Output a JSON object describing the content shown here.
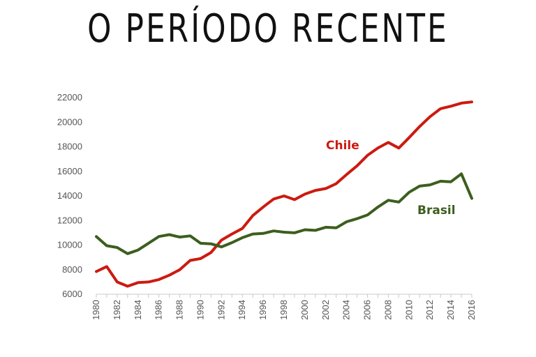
{
  "title": "O PERÍODO RECENTE",
  "chart_data": {
    "type": "line",
    "title": "O PERÍODO RECENTE",
    "xlabel": "",
    "ylabel": "",
    "xlim": [
      1980,
      2016
    ],
    "ylim": [
      6000,
      22000
    ],
    "yticks": [
      6000,
      8000,
      10000,
      12000,
      14000,
      16000,
      18000,
      20000,
      22000
    ],
    "xticks": [
      1980,
      1982,
      1984,
      1986,
      1988,
      1990,
      1992,
      1994,
      1996,
      1998,
      2000,
      2002,
      2004,
      2006,
      2008,
      2010,
      2012,
      2014,
      2016
    ],
    "grid": false,
    "legend": "none (direct labels)",
    "x": [
      1980,
      1981,
      1982,
      1983,
      1984,
      1985,
      1986,
      1987,
      1988,
      1989,
      1990,
      1991,
      1992,
      1993,
      1994,
      1995,
      1996,
      1997,
      1998,
      1999,
      2000,
      2001,
      2002,
      2003,
      2004,
      2005,
      2006,
      2007,
      2008,
      2009,
      2010,
      2011,
      2012,
      2013,
      2014,
      2015,
      2016
    ],
    "series": [
      {
        "name": "Chile",
        "color": "#cc1a10",
        "values": [
          7850,
          8250,
          7000,
          6650,
          6950,
          7000,
          7200,
          7550,
          8000,
          8750,
          8900,
          9400,
          10400,
          10900,
          11350,
          12400,
          13100,
          13750,
          14000,
          13700,
          14150,
          14450,
          14600,
          15000,
          15750,
          16450,
          17300,
          17900,
          18350,
          17900,
          18750,
          19650,
          20450,
          21100,
          21300,
          21550,
          21650
        ]
      },
      {
        "name": "Brasil",
        "color": "#3c5e1e",
        "values": [
          10700,
          9950,
          9800,
          9300,
          9600,
          10150,
          10700,
          10850,
          10650,
          10750,
          10150,
          10100,
          9850,
          10200,
          10600,
          10900,
          10950,
          11150,
          11050,
          11000,
          11250,
          11200,
          11450,
          11400,
          11900,
          12150,
          12450,
          13100,
          13650,
          13500,
          14300,
          14800,
          14900,
          15200,
          15150,
          15800,
          13800
        ]
      }
    ]
  }
}
